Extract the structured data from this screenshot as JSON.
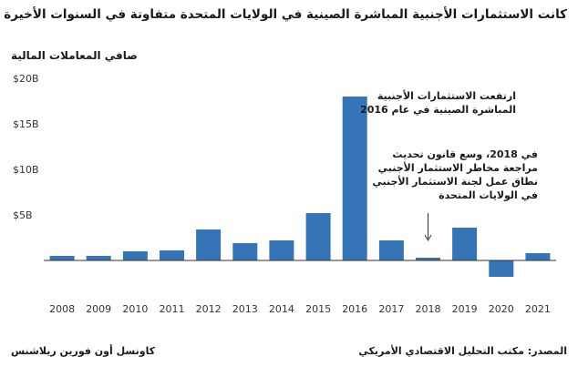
{
  "title": "كانت الاستثمارات الأجنبية المباشرة الصينية في الولايات المتحدة متفاوتة في السنوات الأخيرة",
  "footer": {
    "source": "المصدر: مكتب التحليل الاقتصادي الأمريكي",
    "org": "كاونسل أون فورين ريلاشنس"
  },
  "annotations": [
    {
      "lines": [
        "ارتفعت الاستثمارات الأجنبية",
        "المباشرة الصينية في عام 2016"
      ]
    },
    {
      "lines": [
        "في 2018، وسع قانون تحديث",
        "مراجعة مخاطر الاستثمار الأجنبي",
        "نطاق عمل لجنة الاستثمار الأجنبي",
        "في الولايات المتحدة"
      ]
    }
  ],
  "colors": {
    "bar": "#3674b8",
    "axis": "#333333",
    "grid": "#d9d9d9"
  },
  "chart_data": {
    "type": "bar",
    "title": "كانت الاستثمارات الأجنبية المباشرة الصينية في الولايات المتحدة متفاوتة في السنوات الأخيرة",
    "ylabel": "صافي المعاملات المالية",
    "xlabel": "",
    "categories": [
      "2008",
      "2009",
      "2010",
      "2011",
      "2012",
      "2013",
      "2014",
      "2015",
      "2016",
      "2017",
      "2018",
      "2019",
      "2020",
      "2021"
    ],
    "values": [
      0.5,
      0.5,
      1.0,
      1.1,
      3.4,
      1.9,
      2.2,
      5.2,
      18.0,
      2.2,
      0.3,
      3.6,
      -1.8,
      0.8
    ],
    "units": "billions USD",
    "ylim": [
      -2,
      20
    ],
    "yticks": [
      {
        "value": 20,
        "label": "$20B"
      },
      {
        "value": 15,
        "label": "$15B"
      },
      {
        "value": 10,
        "label": "$10B"
      },
      {
        "value": 5,
        "label": "$5B"
      }
    ],
    "grid": false,
    "legend": "none"
  }
}
